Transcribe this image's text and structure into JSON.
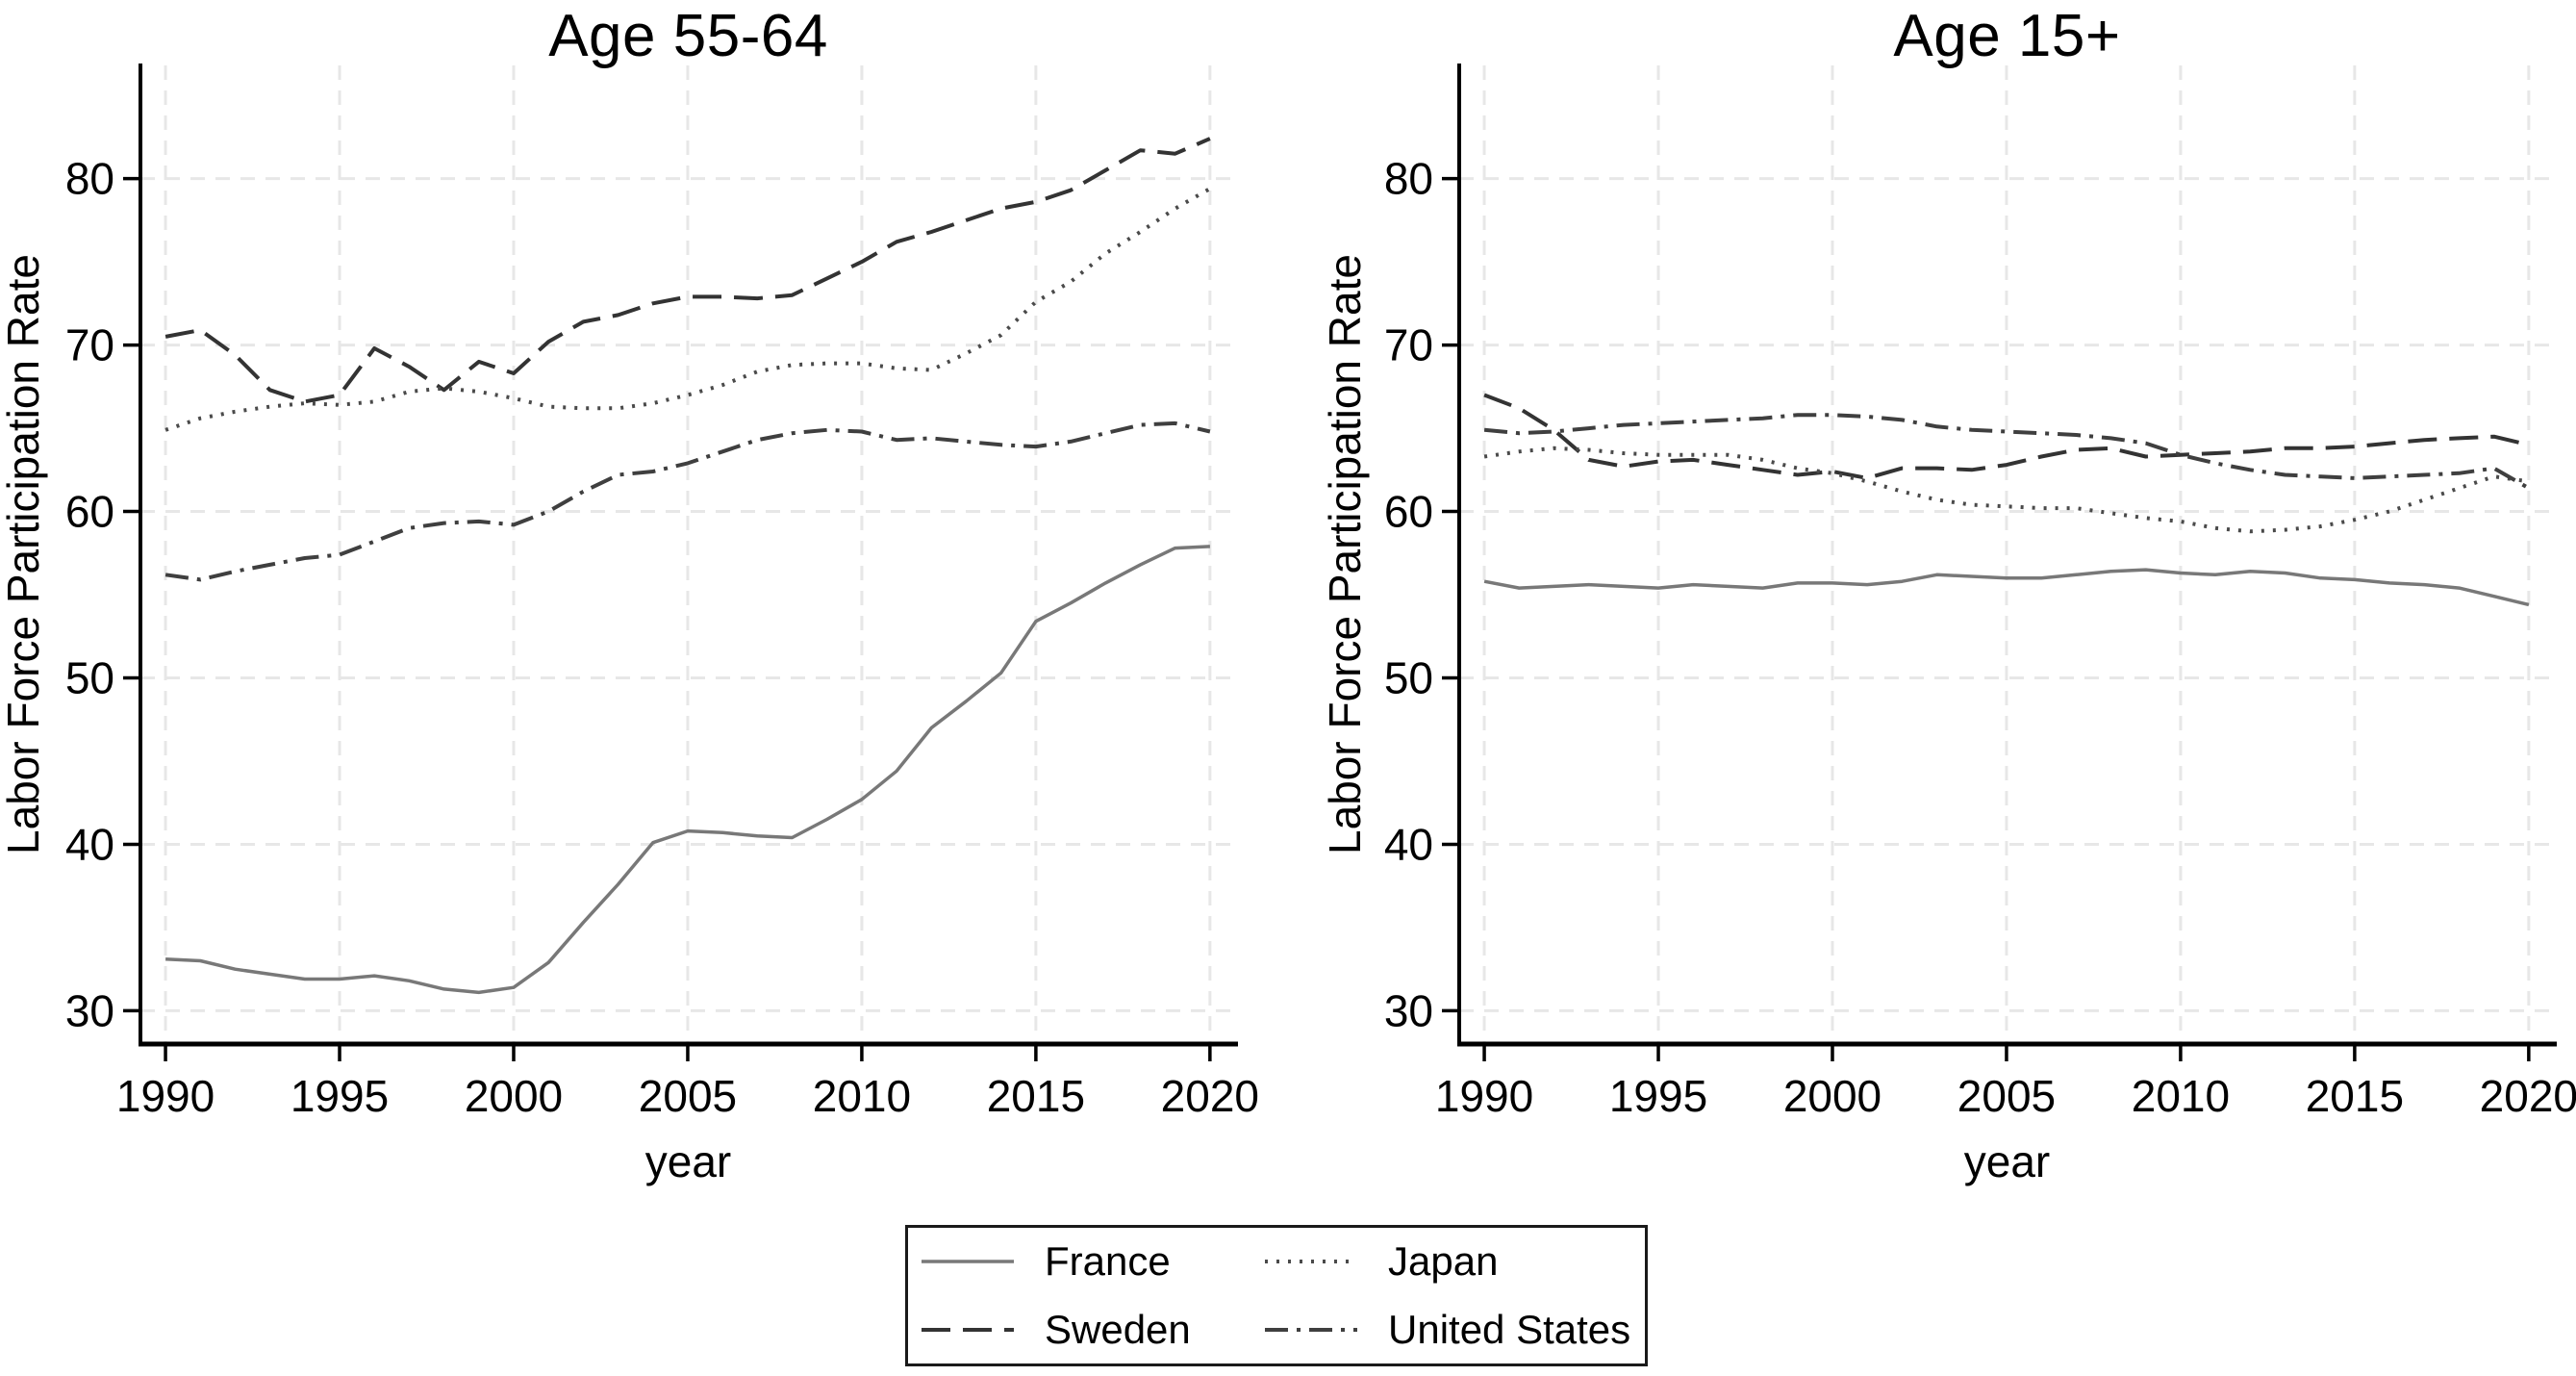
{
  "figure": {
    "background": "#ffffff",
    "axis_color": "#000000",
    "grid_color": "#e7e7e7",
    "text_color": "#000000"
  },
  "chart_data": [
    {
      "type": "line",
      "title": "Age 55-64",
      "xlabel": "year",
      "ylabel": "Labor Force Participation Rate",
      "grid": true,
      "legend_position": "bottom-center",
      "xticks": [
        1990,
        1995,
        2000,
        2005,
        2010,
        2015,
        2020
      ],
      "yticks": [
        30,
        40,
        50,
        60,
        70,
        80
      ],
      "xlim": [
        1989.28,
        2020.75
      ],
      "ylim": [
        28.0,
        86.8
      ],
      "x": [
        1990,
        1991,
        1992,
        1993,
        1994,
        1995,
        1996,
        1997,
        1998,
        1999,
        2000,
        2001,
        2002,
        2003,
        2004,
        2005,
        2006,
        2007,
        2008,
        2009,
        2010,
        2011,
        2012,
        2013,
        2014,
        2015,
        2016,
        2017,
        2018,
        2019,
        2020
      ],
      "series": [
        {
          "name": "France",
          "line_style": "solid",
          "color": "#787878",
          "values": [
            33.1,
            33.0,
            32.5,
            32.2,
            31.9,
            31.9,
            32.1,
            31.8,
            31.3,
            31.1,
            31.4,
            32.9,
            35.3,
            37.6,
            40.1,
            40.8,
            40.7,
            40.5,
            40.4,
            41.5,
            42.7,
            44.4,
            47.0,
            48.6,
            50.3,
            53.4,
            54.5,
            55.7,
            56.8,
            57.8,
            57.9
          ]
        },
        {
          "name": "Sweden",
          "line_style": "dash",
          "color": "#333333",
          "values": [
            70.5,
            70.9,
            69.4,
            67.3,
            66.6,
            67.0,
            69.8,
            68.7,
            67.3,
            69.0,
            68.3,
            70.2,
            71.4,
            71.8,
            72.5,
            72.9,
            72.9,
            72.8,
            73.0,
            74.0,
            75.0,
            76.2,
            76.8,
            77.5,
            78.2,
            78.6,
            79.3,
            80.5,
            81.7,
            81.5,
            82.4
          ]
        },
        {
          "name": "Japan",
          "line_style": "dot",
          "color": "#4a4a4a",
          "values": [
            64.9,
            65.6,
            66.0,
            66.3,
            66.5,
            66.4,
            66.6,
            67.2,
            67.4,
            67.2,
            66.8,
            66.3,
            66.2,
            66.2,
            66.5,
            67.0,
            67.6,
            68.4,
            68.8,
            68.9,
            68.9,
            68.6,
            68.5,
            69.5,
            70.6,
            72.6,
            73.8,
            75.5,
            76.8,
            78.2,
            79.4
          ]
        },
        {
          "name": "United States",
          "line_style": "dashdot",
          "color": "#3f3f3f",
          "values": [
            56.2,
            55.9,
            56.4,
            56.8,
            57.2,
            57.4,
            58.2,
            59.0,
            59.3,
            59.4,
            59.2,
            60.0,
            61.2,
            62.2,
            62.4,
            62.9,
            63.6,
            64.3,
            64.7,
            64.9,
            64.8,
            64.3,
            64.4,
            64.2,
            64.0,
            63.9,
            64.2,
            64.7,
            65.2,
            65.3,
            64.8
          ]
        }
      ]
    },
    {
      "type": "line",
      "title": "Age 15+",
      "xlabel": "year",
      "ylabel": "Labor Force Participation Rate",
      "grid": true,
      "legend_position": "bottom-center",
      "xticks": [
        1990,
        1995,
        2000,
        2005,
        2010,
        2015,
        2020
      ],
      "yticks": [
        30,
        40,
        50,
        60,
        70,
        80
      ],
      "xlim": [
        1989.28,
        2020.75
      ],
      "ylim": [
        28.0,
        86.8
      ],
      "x": [
        1990,
        1991,
        1992,
        1993,
        1994,
        1995,
        1996,
        1997,
        1998,
        1999,
        2000,
        2001,
        2002,
        2003,
        2004,
        2005,
        2006,
        2007,
        2008,
        2009,
        2010,
        2011,
        2012,
        2013,
        2014,
        2015,
        2016,
        2017,
        2018,
        2019,
        2020
      ],
      "series": [
        {
          "name": "France",
          "line_style": "solid",
          "color": "#787878",
          "values": [
            55.8,
            55.4,
            55.5,
            55.6,
            55.5,
            55.4,
            55.6,
            55.5,
            55.4,
            55.7,
            55.7,
            55.6,
            55.8,
            56.2,
            56.1,
            56.0,
            56.0,
            56.2,
            56.4,
            56.5,
            56.3,
            56.2,
            56.4,
            56.3,
            56.0,
            55.9,
            55.7,
            55.6,
            55.4,
            54.9,
            54.4
          ]
        },
        {
          "name": "Sweden",
          "line_style": "dash",
          "color": "#333333",
          "values": [
            67.0,
            66.2,
            64.9,
            63.1,
            62.7,
            63.0,
            63.1,
            62.8,
            62.5,
            62.2,
            62.4,
            62.0,
            62.6,
            62.6,
            62.5,
            62.8,
            63.3,
            63.7,
            63.8,
            63.3,
            63.4,
            63.5,
            63.6,
            63.8,
            63.8,
            63.9,
            64.1,
            64.3,
            64.4,
            64.5,
            64.0
          ]
        },
        {
          "name": "Japan",
          "line_style": "dot",
          "color": "#4a4a4a",
          "values": [
            63.3,
            63.6,
            63.8,
            63.7,
            63.5,
            63.4,
            63.4,
            63.4,
            63.1,
            62.6,
            62.3,
            61.8,
            61.2,
            60.7,
            60.4,
            60.3,
            60.2,
            60.2,
            59.9,
            59.6,
            59.4,
            59.0,
            58.8,
            58.9,
            59.1,
            59.5,
            60.0,
            60.7,
            61.4,
            62.1,
            61.8
          ]
        },
        {
          "name": "United States",
          "line_style": "dashdot",
          "color": "#3f3f3f",
          "values": [
            64.9,
            64.7,
            64.8,
            65.0,
            65.2,
            65.3,
            65.4,
            65.5,
            65.6,
            65.8,
            65.8,
            65.7,
            65.5,
            65.1,
            64.9,
            64.8,
            64.7,
            64.6,
            64.4,
            64.1,
            63.4,
            62.9,
            62.5,
            62.2,
            62.1,
            62.0,
            62.1,
            62.2,
            62.3,
            62.6,
            61.4
          ]
        }
      ]
    }
  ],
  "legend": {
    "entries": [
      {
        "label": "France",
        "line_style": "solid",
        "color": "#787878"
      },
      {
        "label": "Japan",
        "line_style": "dot",
        "color": "#4a4a4a"
      },
      {
        "label": "Sweden",
        "line_style": "dash",
        "color": "#333333"
      },
      {
        "label": "United States",
        "line_style": "dashdot",
        "color": "#3f3f3f"
      }
    ]
  }
}
